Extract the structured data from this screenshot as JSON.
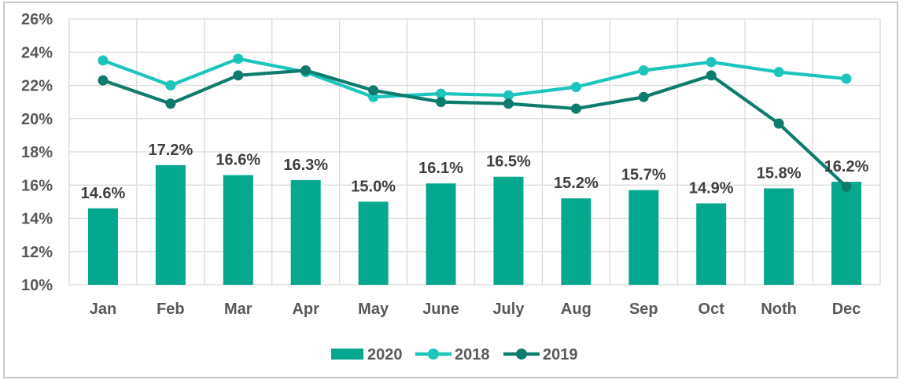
{
  "chart_data": {
    "type": "combo-bar-line",
    "title": "",
    "categories": [
      "Jan",
      "Feb",
      "Mar",
      "Apr",
      "May",
      "June",
      "July",
      "Aug",
      "Sep",
      "Oct",
      "Noth",
      "Dec"
    ],
    "series": [
      {
        "name": "2020",
        "type": "bar",
        "color": "#05A88C",
        "values": [
          14.6,
          17.2,
          16.6,
          16.3,
          15.0,
          16.1,
          16.5,
          15.2,
          15.7,
          14.9,
          15.8,
          16.2
        ],
        "data_labels": [
          "14.6%",
          "17.2%",
          "16.6%",
          "16.3%",
          "15.0%",
          "16.1%",
          "16.5%",
          "15.2%",
          "15.7%",
          "14.9%",
          "15.8%",
          "16.2%"
        ]
      },
      {
        "name": "2018",
        "type": "line",
        "color": "#1BC5BB",
        "values": [
          23.5,
          22.0,
          23.6,
          22.8,
          21.3,
          21.5,
          21.4,
          21.9,
          22.9,
          23.4,
          22.8,
          22.4
        ]
      },
      {
        "name": "2019",
        "type": "line",
        "color": "#0E7C6C",
        "values": [
          22.3,
          20.9,
          22.6,
          22.9,
          21.7,
          21.0,
          20.9,
          20.6,
          21.3,
          22.6,
          19.7,
          15.9
        ]
      }
    ],
    "y_axis": {
      "min": 10,
      "max": 26,
      "step": 2,
      "tick_labels": [
        "26%",
        "24%",
        "22%",
        "20%",
        "18%",
        "16%",
        "14%",
        "12%",
        "10%"
      ]
    },
    "x_axis": {
      "tick_labels": [
        "Jan",
        "Feb",
        "Mar",
        "Apr",
        "May",
        "June",
        "July",
        "Aug",
        "Sep",
        "Oct",
        "Noth",
        "Dec"
      ]
    },
    "grid": {
      "horizontal": true,
      "vertical": true,
      "color": "#D9D9D9"
    },
    "legend": {
      "position": "bottom",
      "entries": [
        "2020",
        "2018",
        "2019"
      ]
    },
    "style": {
      "frame_color": "#C9C9C9",
      "axis_text_color": "#595959",
      "data_label_color": "#3F3F3F",
      "background": "#FFFFFF"
    }
  }
}
